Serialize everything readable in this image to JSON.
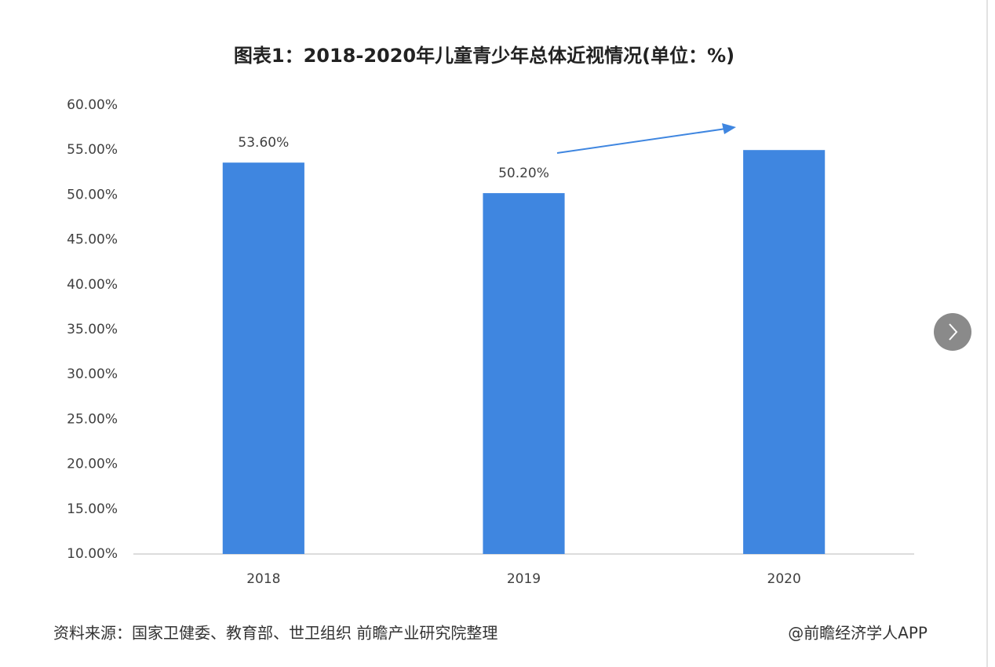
{
  "chart_data": {
    "type": "bar",
    "title": "图表1：2018-2020年儿童青少年总体近视情况(单位：%)",
    "categories": [
      "2018",
      "2019",
      "2020"
    ],
    "values": [
      53.6,
      50.2,
      55
    ],
    "value_labels": [
      "53.60%",
      "50.20%",
      null
    ],
    "color": "#3f86e0",
    "ylim": [
      10,
      60
    ],
    "yticks": [
      {
        "value": 10,
        "label": "10.00%"
      },
      {
        "value": 15,
        "label": "15.00%"
      },
      {
        "value": 20,
        "label": "20.00%"
      },
      {
        "value": 25,
        "label": "25.00%"
      },
      {
        "value": 30,
        "label": "30.00%"
      },
      {
        "value": 35,
        "label": "35.00%"
      },
      {
        "value": 40,
        "label": "40.00%"
      },
      {
        "value": 45,
        "label": "45.00%"
      },
      {
        "value": 50,
        "label": "50.00%"
      },
      {
        "value": 55,
        "label": "55.00%"
      },
      {
        "value": 60,
        "label": "60.00%"
      }
    ],
    "grid": false,
    "source": "资料来源：国家卫健委、教育部、世卫组织 前瞻产业研究院整理",
    "credit": "@前瞻经济学人APP"
  }
}
